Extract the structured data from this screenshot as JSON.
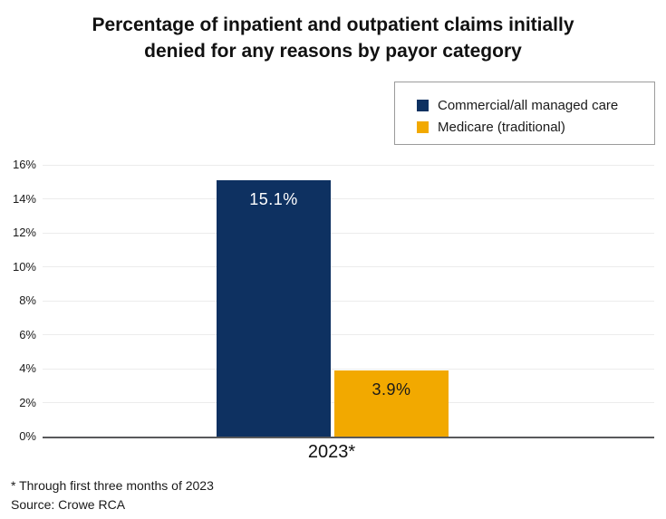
{
  "title": {
    "line1": "Percentage of inpatient and outpatient claims initially",
    "line2": "denied for any reasons by payor category"
  },
  "legend": {
    "items": [
      {
        "label": "Commercial/all managed care",
        "color": "#0e3161"
      },
      {
        "label": "Medicare (traditional)",
        "color": "#f2a900"
      }
    ]
  },
  "chart_data": {
    "type": "bar",
    "title": "Percentage of inpatient and outpatient claims initially denied for any reasons by payor category",
    "categories": [
      "2023*"
    ],
    "series": [
      {
        "name": "Commercial/all managed care",
        "values": [
          15.1
        ],
        "display_labels": [
          "15.1%"
        ],
        "color": "#0e3161",
        "label_color": "#ffffff"
      },
      {
        "name": "Medicare (traditional)",
        "values": [
          3.9
        ],
        "display_labels": [
          "3.9%"
        ],
        "color": "#f2a900",
        "label_color": "#1a1a1a"
      }
    ],
    "xlabel": "",
    "ylabel": "",
    "ylim": [
      0,
      16
    ],
    "ytick_step": 2,
    "ytick_suffix": "%",
    "grid": true,
    "legend_position": "top-right"
  },
  "footnotes": [
    "* Through first three months of 2023",
    "Source: Crowe RCA"
  ],
  "colors": {
    "axis": "#58595b",
    "grid": "#ececec",
    "text": "#1a1a1a",
    "legend_border": "#9b9b9b"
  }
}
